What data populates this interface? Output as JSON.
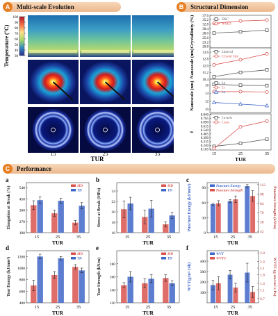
{
  "panels": {
    "A": {
      "letter": "A",
      "title": "Multi-scale Evolution"
    },
    "B": {
      "letter": "B",
      "title": "Structural Dimension"
    },
    "C": {
      "letter": "C",
      "title": "Performance"
    }
  },
  "panel_a": {
    "ylabel": "Temperature (°C)",
    "colorbar_ticks": [
      "30",
      "40",
      "50",
      "60",
      "70",
      "80",
      "90",
      "100"
    ],
    "xlabel": "TUR",
    "x_ticks": [
      "15",
      "25",
      "35"
    ]
  },
  "colors": {
    "red": "#d9534f",
    "blue": "#4066c8",
    "dark": "#555555",
    "gray": "#7a7a7a",
    "accent": "#e67e22"
  },
  "chart_data": [
    {
      "id": "B1",
      "type": "line",
      "x": [
        15,
        25,
        35
      ],
      "ylabel": "Crystallinity (%)",
      "ylim": [
        20,
        37.6
      ],
      "yticks": [
        "37.6",
        "35.2",
        "32.8",
        "30.4",
        "28.0",
        "25.6",
        "23.2",
        "20.8"
      ],
      "legend": "top-left",
      "series": [
        {
          "name": "DSC",
          "values": [
            28.0,
            28.7,
            29.6
          ],
          "color": "#555555"
        },
        {
          "name": "WAXD",
          "values": [
            33.3,
            34.5,
            35.0
          ],
          "color": "#d9534f"
        }
      ]
    },
    {
      "id": "B2",
      "type": "line",
      "x": [
        15,
        25,
        35
      ],
      "ylabel": "Nanoscale (nm)",
      "ylim": [
        10.4,
        14.1
      ],
      "yticks": [
        "13.6",
        "12.8",
        "12.0",
        "11.2",
        "10.4"
      ],
      "legend": "top-left",
      "series": [
        {
          "name": "Llateral",
          "values": [
            10.7,
            11.2,
            11.5
          ],
          "color": "#555555"
        },
        {
          "name": "Crystal Size",
          "values": [
            12.1,
            12.7,
            13.4
          ],
          "color": "#d9534f"
        }
      ]
    },
    {
      "id": "B3",
      "type": "line",
      "x": [
        15,
        25,
        35
      ],
      "ylabel": "Nanoscale (nm)",
      "ylim": [
        9.2,
        17.5
      ],
      "yticks": [
        "16",
        "14",
        "12",
        "10"
      ],
      "legend": "top-left",
      "series": [
        {
          "name": "Lp",
          "values": [
            16.2,
            16.0,
            15.9
          ],
          "color": "#555555"
        },
        {
          "name": "Lc",
          "values": [
            14.4,
            14.4,
            14.3
          ],
          "color": "#d9534f"
        },
        {
          "name": "La",
          "values": [
            11.7,
            11.3,
            10.9
          ],
          "color": "#4066c8"
        }
      ]
    },
    {
      "id": "B4",
      "type": "line",
      "x": [
        15,
        25,
        35
      ],
      "xlabel": "TUR",
      "ylabel": "f",
      "ylim": [
        0.15,
        0.85
      ],
      "yticks": [
        "0.840",
        "0.765",
        "0.690",
        "0.615",
        "0.540",
        "0.465",
        "0.390",
        "0.315",
        "0.240",
        "0.165"
      ],
      "legend": "top-left",
      "series": [
        {
          "name": "f a-axis",
          "values": [
            0.22,
            0.28,
            0.36
          ],
          "color": "#555555"
        },
        {
          "name": "f saxs",
          "values": [
            0.18,
            0.6,
            0.71
          ],
          "color": "#d9534f"
        }
      ]
    },
    {
      "id": "a",
      "type": "bar",
      "label": "a",
      "categories": [
        "15",
        "25",
        "35"
      ],
      "xlabel": "TUR",
      "ylabel": "Elongation at Break (%)",
      "ylim": [
        180,
        580
      ],
      "yticks": [
        "540",
        "450",
        "360",
        "270",
        "180"
      ],
      "legend": "top-right",
      "series": [
        {
          "name": "MD",
          "values": [
            400,
            335,
            260
          ],
          "errors": [
            35,
            25,
            18
          ],
          "color": "#d9534f"
        },
        {
          "name": "TD",
          "values": [
            440,
            435,
            395
          ],
          "errors": [
            28,
            20,
            25
          ],
          "color": "#4066c8"
        }
      ]
    },
    {
      "id": "b",
      "type": "bar",
      "label": "b",
      "categories": [
        "15",
        "25",
        "35"
      ],
      "xlabel": "TUR",
      "ylabel": "Stress at Break (MPa)",
      "ylim": [
        16,
        25.6
      ],
      "yticks": [
        "24",
        "22",
        "20",
        "18",
        "16"
      ],
      "legend": "top-right",
      "series": [
        {
          "name": "MD",
          "values": [
            20.5,
            19.0,
            17.6
          ],
          "errors": [
            1.6,
            1.3,
            0.5
          ],
          "color": "#d9534f"
        },
        {
          "name": "TD",
          "values": [
            21.6,
            20.6,
            19.3
          ],
          "errors": [
            1.2,
            1.6,
            0.6
          ],
          "color": "#4066c8"
        }
      ]
    },
    {
      "id": "c",
      "type": "bar",
      "label": "c",
      "categories": [
        "15",
        "25",
        "35"
      ],
      "xlabel": "TUR",
      "ylabel": "Puncture Energy (kJ/mm²)",
      "y2label": "Puncture Strength (kN/m)",
      "ylim": [
        0,
        100
      ],
      "y2lim": [
        40,
        115
      ],
      "yticks": [
        "90",
        "60",
        "30",
        "0"
      ],
      "y2ticks": [
        "112",
        "98",
        "84",
        "70",
        "56",
        "42"
      ],
      "legend": "top-left",
      "series": [
        {
          "name": "Puncture Energy",
          "values": [
            57,
            63,
            93
          ],
          "errors": [
            2,
            3,
            3
          ],
          "color": "#4066c8",
          "axis": "left"
        },
        {
          "name": "Puncture Strength",
          "values": [
            84,
            90,
            95
          ],
          "errors": [
            4,
            5,
            8
          ],
          "color": "#d9534f",
          "axis": "right"
        }
      ]
    },
    {
      "id": "d",
      "type": "bar",
      "label": "d",
      "categories": [
        "15",
        "25",
        "35"
      ],
      "xlabel": "TUR",
      "ylabel": "Tear Energy (kJ/mm²)",
      "ylim": [
        400,
        1300
      ],
      "yticks": [
        "1200",
        "1000",
        "800",
        "600",
        "400"
      ],
      "legend": "top-right",
      "series": [
        {
          "name": "MD",
          "values": [
            700,
            880,
            1020
          ],
          "errors": [
            90,
            60,
            40
          ],
          "color": "#d9534f"
        },
        {
          "name": "TD",
          "values": [
            1200,
            1170,
            960
          ],
          "errors": [
            40,
            30,
            40
          ],
          "color": "#4066c8"
        }
      ]
    },
    {
      "id": "e",
      "type": "bar",
      "label": "e",
      "categories": [
        "15",
        "25",
        "35"
      ],
      "xlabel": "TUR",
      "ylabel": "Tear Strength (kN/m)",
      "ylim": [
        120,
        200
      ],
      "yticks": [
        "180",
        "160",
        "140",
        "120"
      ],
      "legend": "top-right",
      "series": [
        {
          "name": "MD",
          "values": [
            147,
            150,
            158
          ],
          "errors": [
            4,
            7,
            5
          ],
          "color": "#d9534f"
        },
        {
          "name": "TD",
          "values": [
            160,
            157,
            150
          ],
          "errors": [
            8,
            6,
            4
          ],
          "color": "#4066c8"
        }
      ]
    },
    {
      "id": "f",
      "type": "bar",
      "label": "f",
      "categories": [
        "15",
        "25",
        "35"
      ],
      "xlabel": "TUR",
      "ylabel": "WVT(g/m²·24h)",
      "y2label": "WVTC (g·cm/cm²·s·Pa)",
      "ylim": [
        0,
        500
      ],
      "y2lim": [
        0.5,
        2.9
      ],
      "yticks": [
        "400",
        "300",
        "200",
        "100"
      ],
      "y2ticks": [
        "2.8",
        "2.4",
        "2.1",
        "1.8",
        "1.4",
        "1.1",
        "0.7"
      ],
      "legend": "top-left",
      "series": [
        {
          "name": "WVT",
          "values": [
            170,
            270,
            290
          ],
          "errors": [
            45,
            40,
            90
          ],
          "color": "#4066c8",
          "axis": "left"
        },
        {
          "name": "WVTC",
          "values": [
            1.4,
            1.2,
            1.0
          ],
          "errors": [
            0.3,
            0.2,
            0.25
          ],
          "color": "#d9534f",
          "axis": "right"
        }
      ]
    }
  ]
}
